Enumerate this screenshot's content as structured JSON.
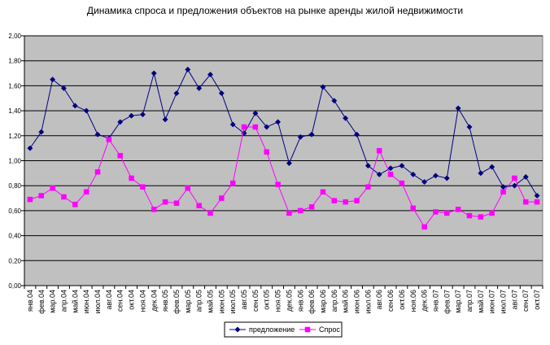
{
  "chart_data": {
    "type": "line",
    "title": "Динамика спроса и предложения объектов на рынке аренды жилой недвижимости",
    "xlabel": "",
    "ylabel": "",
    "ylim": [
      0,
      2.0
    ],
    "yticks": [
      "0,00",
      "0,20",
      "0,40",
      "0,60",
      "0,80",
      "1,00",
      "1,20",
      "1,40",
      "1,60",
      "1,80",
      "2,00"
    ],
    "grid": true,
    "legend_position": "bottom",
    "plot_background": "#c0c0c0",
    "categories": [
      "янв.04",
      "фев.04",
      "мар.04",
      "апр.04",
      "май.04",
      "июн.04",
      "июл.04",
      "авг.04",
      "сен.04",
      "окт.04",
      "ноя.04",
      "дек.04",
      "янв.05",
      "фев.05",
      "мар.05",
      "апр.05",
      "май.05",
      "июн.05",
      "июл.05",
      "авг.05",
      "сен.05",
      "окт.05",
      "ноя.05",
      "дек.05",
      "янв.06",
      "фев.06",
      "мар.06",
      "апр.06",
      "май.06",
      "июн.06",
      "июл.06",
      "авг.06",
      "сен.06",
      "окт.06",
      "ноя.06",
      "дек.06",
      "янв.07",
      "фев.07",
      "мар.07",
      "апр.07",
      "май.07",
      "июн.07",
      "июл.07",
      "авг.07",
      "сен.07",
      "окт.07"
    ],
    "series": [
      {
        "name": "предложение",
        "color": "#000080",
        "marker": "diamond",
        "values": [
          1.1,
          1.23,
          1.65,
          1.58,
          1.44,
          1.4,
          1.21,
          1.18,
          1.31,
          1.36,
          1.37,
          1.7,
          1.33,
          1.54,
          1.73,
          1.58,
          1.69,
          1.54,
          1.29,
          1.22,
          1.38,
          1.27,
          1.31,
          0.98,
          1.19,
          1.21,
          1.59,
          1.48,
          1.34,
          1.21,
          0.96,
          0.89,
          0.94,
          0.96,
          0.89,
          0.83,
          0.88,
          0.86,
          1.42,
          1.27,
          0.9,
          0.95,
          0.79,
          0.8,
          0.87,
          0.72
        ]
      },
      {
        "name": "Спрос",
        "color": "#ff00ff",
        "marker": "square",
        "values": [
          0.69,
          0.72,
          0.78,
          0.71,
          0.65,
          0.75,
          0.91,
          1.17,
          1.04,
          0.86,
          0.79,
          0.61,
          0.67,
          0.66,
          0.78,
          0.64,
          0.58,
          0.7,
          0.82,
          1.27,
          1.27,
          1.07,
          0.81,
          0.58,
          0.6,
          0.63,
          0.75,
          0.68,
          0.67,
          0.68,
          0.79,
          1.08,
          0.89,
          0.82,
          0.62,
          0.47,
          0.59,
          0.58,
          0.61,
          0.56,
          0.55,
          0.58,
          0.75,
          0.86,
          0.67,
          0.67
        ]
      }
    ]
  }
}
